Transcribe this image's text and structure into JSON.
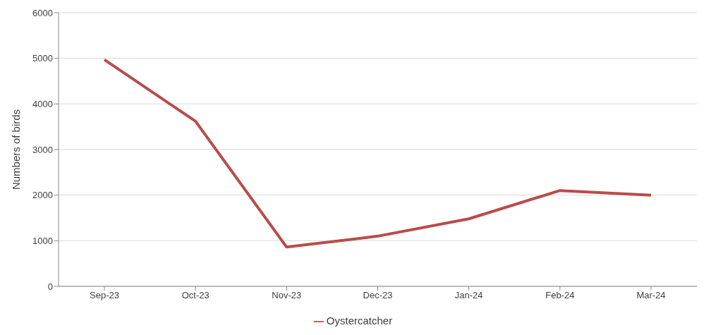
{
  "chart_data": {
    "type": "line",
    "ylabel": "Numbers of birds",
    "categories": [
      "Sep-23",
      "Oct-23",
      "Nov-23",
      "Dec-23",
      "Jan-24",
      "Feb-24",
      "Mar-24"
    ],
    "series": [
      {
        "name": "Oystercatcher",
        "color": "#b84c4a",
        "values": [
          4970,
          3620,
          860,
          1100,
          1480,
          2100,
          2000
        ]
      }
    ],
    "ylim": [
      0,
      6000
    ],
    "yticks": [
      0,
      1000,
      2000,
      3000,
      4000,
      5000,
      6000
    ],
    "grid": "y",
    "legend": "bottom",
    "marker": "none"
  }
}
